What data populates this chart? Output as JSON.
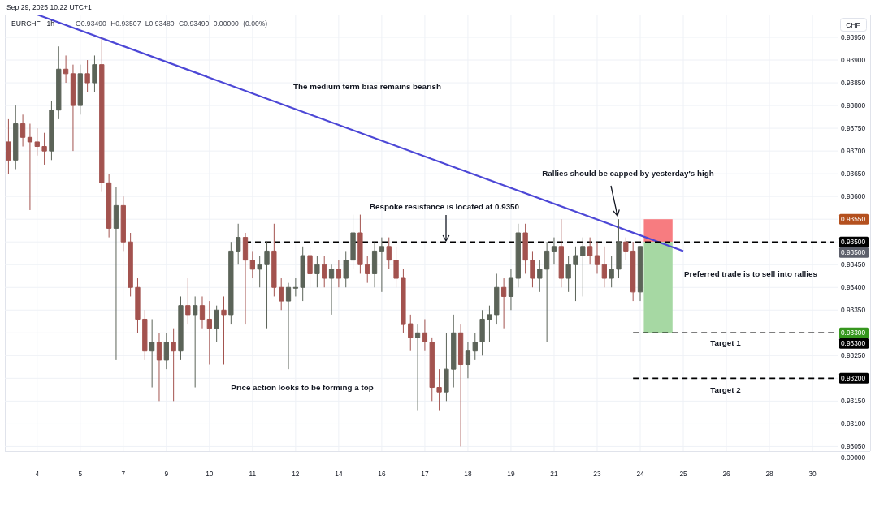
{
  "chart_data": [
    {
      "type": "candlestick",
      "title": "EURCHF · 1h",
      "subtitle": "O0.93490 H0.93507 L0.93480 C0.93490 0.00000 (0.00%)",
      "ylabel": "CHF",
      "categories": [
        null,
        null,
        null,
        null,
        "4",
        null,
        null,
        null,
        null,
        null,
        "5",
        null,
        null,
        null,
        null,
        null,
        "7",
        null,
        null,
        null,
        null,
        null,
        "9",
        null,
        null,
        null,
        null,
        null,
        "10",
        null,
        null,
        null,
        null,
        null,
        "11",
        null,
        null,
        null,
        null,
        null,
        "12",
        null,
        null,
        null,
        null,
        null,
        "14",
        null,
        null,
        null,
        null,
        null,
        "16",
        null,
        null,
        null,
        null,
        null,
        "17",
        null,
        null,
        null,
        null,
        null,
        "18",
        null,
        null,
        null,
        null,
        null,
        "19",
        null,
        null,
        null,
        null,
        null,
        "21",
        null,
        null,
        null,
        null,
        null,
        "23",
        null,
        null,
        null,
        null,
        null,
        "24",
        null,
        null,
        null,
        null,
        null,
        "25",
        null,
        null,
        null,
        null,
        null,
        "26",
        null,
        null,
        null,
        null,
        null,
        "28",
        null,
        null,
        null,
        null,
        null,
        "30",
        null,
        null,
        null
      ],
      "ylim": [
        0.9304,
        0.94
      ],
      "yticks": [
        {
          "value": 0.9305,
          "label": "0.93050"
        },
        {
          "value": 0.931,
          "label": "0.93100"
        },
        {
          "value": 0.9315,
          "label": "0.93150"
        },
        {
          "value": 0.932,
          "label": null
        },
        {
          "value": 0.9325,
          "label": "0.93250"
        },
        {
          "value": 0.933,
          "label": null
        },
        {
          "value": 0.9335,
          "label": "0.93350"
        },
        {
          "value": 0.934,
          "label": "0.93400"
        },
        {
          "value": 0.9345,
          "label": "0.93450"
        },
        {
          "value": 0.935,
          "label": null
        },
        {
          "value": 0.9355,
          "label": null
        },
        {
          "value": 0.936,
          "label": "0.93600"
        },
        {
          "value": 0.9365,
          "label": "0.93650"
        },
        {
          "value": 0.937,
          "label": "0.93700"
        },
        {
          "value": 0.9375,
          "label": "0.93750"
        },
        {
          "value": 0.938,
          "label": "0.93800"
        },
        {
          "value": 0.9385,
          "label": "0.93850"
        },
        {
          "value": 0.939,
          "label": "0.93900"
        },
        {
          "value": 0.9395,
          "label": "0.93950"
        }
      ],
      "grid": true,
      "annotations": [
        "Sep 29, 2025 10:22 UTC+1",
        "The medium term bias remains bearish",
        "Bespoke resistance is located at 0.9350",
        "Rallies should be capped by yesterday's high",
        "Price action looks to be forming a top",
        "Preferred trade is to sell into rallies",
        "Target 1",
        "Target 2",
        {
          "text": "0.93550",
          "y": 0.9355
        },
        {
          "text": "0.93300",
          "y": 0.933
        },
        {
          "text": "0.93500",
          "y": 0.935
        }
      ],
      "series": [
        {
          "ohlc": [
            [
              0.9372,
              0.9377,
              0.9365,
              0.9368
            ],
            [
              0.9368,
              0.938,
              0.9366,
              0.9376
            ],
            [
              0.9376,
              0.9378,
              0.9371,
              0.9373
            ],
            [
              0.9373,
              0.9376,
              0.9357,
              0.9372
            ],
            [
              0.9372,
              0.9375,
              0.9369,
              0.9371
            ],
            [
              0.9371,
              0.9374,
              0.9367,
              0.937
            ],
            [
              0.937,
              0.9381,
              0.9368,
              0.9379
            ],
            [
              0.9379,
              0.9393,
              0.9377,
              0.9388
            ],
            [
              0.9388,
              0.9391,
              0.9385,
              0.9387
            ],
            [
              0.9387,
              0.9389,
              0.937,
              0.938
            ],
            [
              0.938,
              0.9389,
              0.9378,
              0.9387
            ],
            [
              0.9387,
              0.939,
              0.9383,
              0.9385
            ],
            [
              0.9385,
              0.9391,
              0.9383,
              0.9389
            ],
            [
              0.9389,
              0.9395,
              0.9361,
              0.9363
            ],
            [
              0.9363,
              0.9365,
              0.9351,
              0.9353
            ],
            [
              0.9353,
              0.9362,
              0.9324,
              0.9358
            ],
            [
              0.9358,
              0.936,
              0.9348,
              0.935
            ],
            [
              0.935,
              0.9352,
              0.9338,
              0.934
            ],
            [
              0.934,
              0.9342,
              0.933,
              0.9333
            ],
            [
              0.9333,
              0.9335,
              0.9324,
              0.9326
            ],
            [
              0.9326,
              0.9333,
              0.9318,
              0.9328
            ],
            [
              0.9328,
              0.933,
              0.9315,
              0.9324
            ],
            [
              0.9324,
              0.933,
              0.9322,
              0.9328
            ],
            [
              0.9328,
              0.9331,
              0.9315,
              0.9326
            ],
            [
              0.9326,
              0.9338,
              0.9324,
              0.9336
            ],
            [
              0.9336,
              0.9342,
              0.9332,
              0.9334
            ],
            [
              0.9334,
              0.9338,
              0.9318,
              0.9336
            ],
            [
              0.9336,
              0.9338,
              0.9331,
              0.9333
            ],
            [
              0.9333,
              0.9337,
              0.9323,
              0.9331
            ],
            [
              0.9331,
              0.9336,
              0.9328,
              0.9335
            ],
            [
              0.9335,
              0.9338,
              0.9323,
              0.9334
            ],
            [
              0.9334,
              0.935,
              0.9332,
              0.9348
            ],
            [
              0.9348,
              0.9354,
              0.9345,
              0.9351
            ],
            [
              0.9351,
              0.9352,
              0.9332,
              0.9346
            ],
            [
              0.9346,
              0.9348,
              0.9342,
              0.9344
            ],
            [
              0.9344,
              0.9347,
              0.934,
              0.9345
            ],
            [
              0.9345,
              0.935,
              0.9331,
              0.9348
            ],
            [
              0.9348,
              0.9354,
              0.9338,
              0.934
            ],
            [
              0.934,
              0.9342,
              0.9335,
              0.9337
            ],
            [
              0.9337,
              0.9341,
              0.9322,
              0.934
            ],
            [
              0.934,
              0.9342,
              0.9338,
              0.934
            ],
            [
              0.934,
              0.9349,
              0.9337,
              0.9347
            ],
            [
              0.9347,
              0.9349,
              0.934,
              0.9343
            ],
            [
              0.9343,
              0.9347,
              0.934,
              0.9345
            ],
            [
              0.9345,
              0.9347,
              0.934,
              0.9342
            ],
            [
              0.9342,
              0.9345,
              0.9334,
              0.9344
            ],
            [
              0.9344,
              0.9346,
              0.934,
              0.9342
            ],
            [
              0.9342,
              0.9348,
              0.934,
              0.9346
            ],
            [
              0.9346,
              0.9356,
              0.9344,
              0.9352
            ],
            [
              0.9352,
              0.9356,
              0.9343,
              0.9345
            ],
            [
              0.9345,
              0.9347,
              0.9341,
              0.9343
            ],
            [
              0.9343,
              0.935,
              0.934,
              0.9348
            ],
            [
              0.9348,
              0.9351,
              0.9339,
              0.9349
            ],
            [
              0.9349,
              0.9351,
              0.9344,
              0.9346
            ],
            [
              0.9346,
              0.9349,
              0.934,
              0.9342
            ],
            [
              0.9342,
              0.9344,
              0.933,
              0.9332
            ],
            [
              0.9332,
              0.9334,
              0.9326,
              0.9329
            ],
            [
              0.9329,
              0.9332,
              0.9313,
              0.933
            ],
            [
              0.933,
              0.9333,
              0.9326,
              0.9328
            ],
            [
              0.9328,
              0.9329,
              0.9315,
              0.9318
            ],
            [
              0.9318,
              0.9322,
              0.9313,
              0.9317
            ],
            [
              0.9317,
              0.933,
              0.9315,
              0.9322
            ],
            [
              0.9322,
              0.9334,
              0.9318,
              0.933
            ],
            [
              0.933,
              0.9332,
              0.9305,
              0.9323
            ],
            [
              0.9323,
              0.9328,
              0.932,
              0.9326
            ],
            [
              0.9326,
              0.933,
              0.9324,
              0.9328
            ],
            [
              0.9328,
              0.9335,
              0.9325,
              0.9333
            ],
            [
              0.9333,
              0.9336,
              0.9328,
              0.9334
            ],
            [
              0.9334,
              0.9343,
              0.9332,
              0.934
            ],
            [
              0.934,
              0.9342,
              0.9331,
              0.9338
            ],
            [
              0.9338,
              0.9344,
              0.9335,
              0.9342
            ],
            [
              0.9342,
              0.9354,
              0.934,
              0.9352
            ],
            [
              0.9352,
              0.9354,
              0.9343,
              0.9346
            ],
            [
              0.9346,
              0.9348,
              0.934,
              0.9342
            ],
            [
              0.9342,
              0.9346,
              0.9339,
              0.9344
            ],
            [
              0.9344,
              0.935,
              0.9328,
              0.9348
            ],
            [
              0.9348,
              0.9351,
              0.9345,
              0.9349
            ],
            [
              0.9349,
              0.9355,
              0.934,
              0.9342
            ],
            [
              0.9342,
              0.9347,
              0.9339,
              0.9345
            ],
            [
              0.9345,
              0.9349,
              0.9337,
              0.9347
            ],
            [
              0.9347,
              0.9351,
              0.9338,
              0.9349
            ],
            [
              0.9349,
              0.9351,
              0.9345,
              0.9347
            ],
            [
              0.9347,
              0.935,
              0.9343,
              0.9345
            ],
            [
              0.9345,
              0.9349,
              0.934,
              0.9342
            ],
            [
              0.9342,
              0.9347,
              0.934,
              0.9344
            ],
            [
              0.9344,
              0.9355,
              0.9342,
              0.935
            ],
            [
              0.935,
              0.9351,
              0.9346,
              0.9348
            ],
            [
              0.9348,
              0.935,
              0.9337,
              0.9339
            ],
            [
              0.9339,
              0.9349,
              0.9337,
              0.9349
            ],
            null,
            null,
            null,
            null,
            null,
            null,
            null,
            null,
            null,
            null,
            null,
            null,
            null,
            null,
            null,
            null,
            null,
            null,
            null,
            null,
            null,
            null,
            null,
            null,
            null,
            null,
            null
          ],
          "colors": [
            "#a3534f",
            "#5c6459",
            "#a3534f",
            "#a3534f",
            "#a3534f",
            "#a3534f",
            "#5c6459",
            "#5c6459",
            "#a3534f",
            "#a3534f",
            "#5c6459",
            "#a3534f",
            "#5c6459",
            "#a3534f",
            "#a3534f",
            "#5c6459",
            "#a3534f",
            "#a3534f",
            "#a3534f",
            "#a3534f",
            "#5c6459",
            "#a3534f",
            "#5c6459",
            "#a3534f",
            "#5c6459",
            "#a3534f",
            "#5c6459",
            "#a3534f",
            "#a3534f",
            "#5c6459",
            "#a3534f",
            "#5c6459",
            "#5c6459",
            "#a3534f",
            "#a3534f",
            "#5c6459",
            "#5c6459",
            "#a3534f",
            "#a3534f",
            "#5c6459",
            "#5c6459",
            "#5c6459",
            "#a3534f",
            "#5c6459",
            "#a3534f",
            "#5c6459",
            "#a3534f",
            "#5c6459",
            "#5c6459",
            "#a3534f",
            "#a3534f",
            "#5c6459",
            "#5c6459",
            "#a3534f",
            "#a3534f",
            "#a3534f",
            "#a3534f",
            "#5c6459",
            "#a3534f",
            "#a3534f",
            "#a3534f",
            "#5c6459",
            "#5c6459",
            "#a3534f",
            "#5c6459",
            "#5c6459",
            "#5c6459",
            "#5c6459",
            "#5c6459",
            "#a3534f",
            "#5c6459",
            "#5c6459",
            "#a3534f",
            "#a3534f",
            "#5c6459",
            "#5c6459",
            "#5c6459",
            "#a3534f",
            "#5c6459",
            "#5c6459",
            "#5c6459",
            "#a3534f",
            "#a3534f",
            "#a3534f",
            "#5c6459",
            "#5c6459",
            "#a3534f",
            "#a3534f",
            "#5c6459",
            null,
            null,
            null,
            null,
            null,
            null,
            null,
            null,
            null,
            null,
            null,
            null,
            null,
            null,
            null,
            null,
            null,
            null,
            null,
            null,
            null,
            null,
            null,
            null,
            null,
            null,
            null
          ]
        },
        {
          "type": "line",
          "color": "#4c47d6",
          "values": [
            null,
            null,
            null,
            null,
            0.94,
            null,
            null,
            null,
            null,
            null,
            null,
            null,
            null,
            null,
            null,
            null,
            null,
            null,
            null,
            null,
            null,
            null,
            null,
            null,
            null,
            null,
            null,
            null,
            null,
            null,
            null,
            null,
            null,
            null,
            null,
            null,
            null,
            null,
            null,
            null,
            null,
            null,
            null,
            null,
            null,
            null,
            null,
            null,
            null,
            null,
            null,
            null,
            null,
            null,
            null,
            null,
            null,
            null,
            null,
            null,
            null,
            null,
            null,
            null,
            null,
            null,
            null,
            null,
            null,
            null,
            null,
            null,
            null,
            null,
            null,
            null,
            null,
            null,
            null,
            null,
            null,
            null,
            null,
            null,
            null,
            null,
            null,
            null,
            null,
            null,
            null,
            null,
            null,
            null,
            0.9348,
            null,
            null,
            null,
            null,
            null,
            null,
            null,
            null,
            null,
            null,
            null,
            null,
            null,
            null,
            null,
            null,
            null,
            null,
            null,
            null,
            null
          ]
        },
        {
          "type": "line",
          "color": "#000000",
          "line_style": "dashed",
          "values": [
            null,
            null,
            null,
            null,
            null,
            null,
            null,
            null,
            null,
            null,
            null,
            null,
            null,
            null,
            null,
            null,
            null,
            null,
            null,
            null,
            null,
            null,
            null,
            null,
            null,
            null,
            null,
            null,
            null,
            null,
            null,
            null,
            null,
            0.935,
            null,
            null,
            null,
            null,
            null,
            null,
            null,
            null,
            null,
            null,
            null,
            null,
            null,
            null,
            null,
            null,
            null,
            null,
            null,
            null,
            null,
            null,
            null,
            null,
            null,
            null,
            null,
            null,
            null,
            null,
            null,
            null,
            null,
            null,
            null,
            null,
            null,
            null,
            null,
            null,
            null,
            null,
            null,
            null,
            null,
            null,
            null,
            null,
            null,
            null,
            null,
            null,
            null,
            null,
            null,
            null,
            null,
            null,
            null,
            null,
            null,
            null,
            null,
            null,
            null,
            null,
            null,
            null,
            null,
            null,
            null,
            null,
            null,
            null,
            null,
            null,
            null,
            null,
            null,
            null,
            null,
            0.935
          ],
          "value_labels": [
            null,
            null,
            null,
            null,
            null,
            null,
            null,
            null,
            null,
            null,
            null,
            null,
            null,
            null,
            null,
            null,
            null,
            null,
            null,
            null,
            null,
            null,
            null,
            null,
            null,
            null,
            null,
            null,
            null,
            null,
            null,
            null,
            null,
            null,
            null,
            null,
            null,
            null,
            null,
            null,
            null,
            null,
            null,
            null,
            null,
            null,
            null,
            null,
            null,
            null,
            null,
            null,
            null,
            null,
            null,
            null,
            null,
            null,
            null,
            null,
            null,
            null,
            null,
            null,
            null,
            null,
            null,
            null,
            null,
            null,
            null,
            null,
            null,
            null,
            null,
            null,
            null,
            null,
            null,
            null,
            null,
            null,
            null,
            null,
            null,
            null,
            null,
            null,
            null,
            null,
            null,
            null,
            null,
            null,
            null,
            null,
            null,
            null,
            null,
            null,
            null,
            null,
            null,
            null,
            null,
            null,
            null,
            null,
            null,
            null,
            null,
            null,
            null,
            null,
            null,
            "0.93500"
          ]
        },
        {
          "type": "line",
          "color": "#000000",
          "line_style": "dashed",
          "values": [
            null,
            null,
            null,
            null,
            null,
            null,
            null,
            null,
            null,
            null,
            null,
            null,
            null,
            null,
            null,
            null,
            null,
            null,
            null,
            null,
            null,
            null,
            null,
            null,
            null,
            null,
            null,
            null,
            null,
            null,
            null,
            null,
            null,
            null,
            null,
            null,
            null,
            null,
            null,
            null,
            null,
            null,
            null,
            null,
            null,
            null,
            null,
            null,
            null,
            null,
            null,
            null,
            null,
            null,
            null,
            null,
            null,
            null,
            null,
            null,
            null,
            null,
            null,
            null,
            null,
            null,
            null,
            null,
            null,
            null,
            null,
            null,
            null,
            null,
            null,
            null,
            null,
            null,
            null,
            null,
            null,
            null,
            null,
            null,
            null,
            null,
            null,
            0.933,
            null,
            null,
            null,
            null,
            null,
            null,
            null,
            null,
            null,
            null,
            null,
            null,
            null,
            null,
            null,
            null,
            null,
            null,
            null,
            null,
            null,
            null,
            null,
            null,
            null,
            null,
            null,
            0.933
          ],
          "value_labels": [
            null,
            null,
            null,
            null,
            null,
            null,
            null,
            null,
            null,
            null,
            null,
            null,
            null,
            null,
            null,
            null,
            null,
            null,
            null,
            null,
            null,
            null,
            null,
            null,
            null,
            null,
            null,
            null,
            null,
            null,
            null,
            null,
            null,
            null,
            null,
            null,
            null,
            null,
            null,
            null,
            null,
            null,
            null,
            null,
            null,
            null,
            null,
            null,
            null,
            null,
            null,
            null,
            null,
            null,
            null,
            null,
            null,
            null,
            null,
            null,
            null,
            null,
            null,
            null,
            null,
            null,
            null,
            null,
            null,
            null,
            null,
            null,
            null,
            null,
            null,
            null,
            null,
            null,
            null,
            null,
            null,
            null,
            null,
            null,
            null,
            null,
            null,
            null,
            null,
            null,
            null,
            null,
            null,
            null,
            null,
            null,
            null,
            null,
            null,
            null,
            null,
            null,
            null,
            null,
            null,
            null,
            null,
            null,
            null,
            null,
            null,
            null,
            null,
            null,
            null,
            "0.93300"
          ]
        },
        {
          "type": "line",
          "color": "#000000",
          "line_style": "dashed",
          "values": [
            null,
            null,
            null,
            null,
            null,
            null,
            null,
            null,
            null,
            null,
            null,
            null,
            null,
            null,
            null,
            null,
            null,
            null,
            null,
            null,
            null,
            null,
            null,
            null,
            null,
            null,
            null,
            null,
            null,
            null,
            null,
            null,
            null,
            null,
            null,
            null,
            null,
            null,
            null,
            null,
            null,
            null,
            null,
            null,
            null,
            null,
            null,
            null,
            null,
            null,
            null,
            null,
            null,
            null,
            null,
            null,
            null,
            null,
            null,
            null,
            null,
            null,
            null,
            null,
            null,
            null,
            null,
            null,
            null,
            null,
            null,
            null,
            null,
            null,
            null,
            null,
            null,
            null,
            null,
            null,
            null,
            null,
            null,
            null,
            null,
            null,
            null,
            0.932,
            null,
            null,
            null,
            null,
            null,
            null,
            null,
            null,
            null,
            null,
            null,
            null,
            null,
            null,
            null,
            null,
            null,
            null,
            null,
            null,
            null,
            null,
            null,
            null,
            null,
            null,
            null,
            0.932
          ],
          "value_labels": [
            null,
            null,
            null,
            null,
            null,
            null,
            null,
            null,
            null,
            null,
            null,
            null,
            null,
            null,
            null,
            null,
            null,
            null,
            null,
            null,
            null,
            null,
            null,
            null,
            null,
            null,
            null,
            null,
            null,
            null,
            null,
            null,
            null,
            null,
            null,
            null,
            null,
            null,
            null,
            null,
            null,
            null,
            null,
            null,
            null,
            null,
            null,
            null,
            null,
            null,
            null,
            null,
            null,
            null,
            null,
            null,
            null,
            null,
            null,
            null,
            null,
            null,
            null,
            null,
            null,
            null,
            null,
            null,
            null,
            null,
            null,
            null,
            null,
            null,
            null,
            null,
            null,
            null,
            null,
            null,
            null,
            null,
            null,
            null,
            null,
            null,
            null,
            null,
            null,
            null,
            null,
            null,
            null,
            null,
            null,
            null,
            null,
            null,
            null,
            null,
            null,
            null,
            null,
            null,
            null,
            null,
            null,
            null,
            null,
            null,
            null,
            null,
            null,
            null,
            null,
            "0.93200"
          ]
        }
      ]
    },
    {
      "type": "other",
      "annotations": [
        "0.00000"
      ]
    }
  ]
}
